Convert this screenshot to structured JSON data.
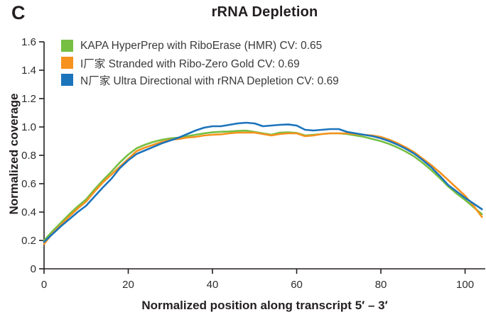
{
  "panel_label": "C",
  "title": "rRNA Depletion",
  "legend": {
    "items": [
      {
        "label": "KAPA HyperPrep with RiboErase (HMR) CV: 0.65"
      },
      {
        "label": "I厂家 Stranded with Ribo-Zero Gold CV: 0.69"
      },
      {
        "label": "N厂家 Ultra Directional with rRNA Depletion CV: 0.69"
      }
    ]
  },
  "chart_data": {
    "type": "line",
    "title": "rRNA Depletion",
    "xlabel": "Normalized position along transcript 5′ – 3′",
    "ylabel": "Normalized coverage",
    "xlim": [
      0,
      104.8
    ],
    "ylim": [
      0,
      1.6
    ],
    "grid": false,
    "legend_position": "top-left",
    "x_ticks": [
      {
        "value": 0,
        "label": "0"
      },
      {
        "value": 20,
        "label": "20"
      },
      {
        "value": 40,
        "label": "40"
      },
      {
        "value": 60,
        "label": "60"
      },
      {
        "value": 80,
        "label": "80"
      },
      {
        "value": 100,
        "label": "100"
      }
    ],
    "y_ticks": [
      {
        "value": 0,
        "label": "0"
      },
      {
        "value": 0.2,
        "label": "0.2"
      },
      {
        "value": 0.4,
        "label": "0.4"
      },
      {
        "value": 0.6,
        "label": "0.6"
      },
      {
        "value": 0.8,
        "label": "0.8"
      },
      {
        "value": 1.0,
        "label": "1.0"
      },
      {
        "value": 1.2,
        "label": "1.2"
      },
      {
        "value": 1.4,
        "label": "1.4"
      },
      {
        "value": 1.6,
        "label": "1.6"
      }
    ],
    "x": [
      0,
      2,
      4,
      6,
      8,
      10,
      12,
      14,
      16,
      18,
      20,
      22,
      24,
      26,
      28,
      30,
      32,
      34,
      36,
      38,
      40,
      42,
      44,
      46,
      48,
      50,
      52,
      54,
      56,
      58,
      60,
      62,
      64,
      66,
      68,
      70,
      72,
      74,
      76,
      78,
      80,
      82,
      84,
      86,
      88,
      90,
      92,
      94,
      96,
      98,
      100,
      102,
      104
    ],
    "series": [
      {
        "name": "KAPA HyperPrep with RiboErase (HMR)",
        "cv": "0.65",
        "color": "#76bf43",
        "values": [
          0.2,
          0.265,
          0.325,
          0.385,
          0.44,
          0.49,
          0.56,
          0.625,
          0.685,
          0.75,
          0.805,
          0.85,
          0.875,
          0.895,
          0.91,
          0.92,
          0.925,
          0.935,
          0.945,
          0.955,
          0.962,
          0.966,
          0.968,
          0.972,
          0.974,
          0.965,
          0.955,
          0.945,
          0.96,
          0.962,
          0.958,
          0.94,
          0.945,
          0.95,
          0.955,
          0.955,
          0.95,
          0.94,
          0.93,
          0.915,
          0.9,
          0.88,
          0.855,
          0.825,
          0.79,
          0.745,
          0.695,
          0.64,
          0.58,
          0.53,
          0.485,
          0.435,
          0.385
        ]
      },
      {
        "name": "I厂家 Stranded with Ribo-Zero Gold",
        "cv": "0.69",
        "color": "#f6921e",
        "values": [
          0.175,
          0.25,
          0.31,
          0.37,
          0.425,
          0.475,
          0.545,
          0.61,
          0.665,
          0.72,
          0.775,
          0.83,
          0.855,
          0.875,
          0.895,
          0.91,
          0.915,
          0.925,
          0.93,
          0.94,
          0.945,
          0.948,
          0.955,
          0.96,
          0.96,
          0.96,
          0.95,
          0.94,
          0.95,
          0.955,
          0.955,
          0.935,
          0.94,
          0.95,
          0.955,
          0.955,
          0.955,
          0.95,
          0.945,
          0.94,
          0.93,
          0.91,
          0.885,
          0.855,
          0.82,
          0.775,
          0.73,
          0.68,
          0.625,
          0.57,
          0.515,
          0.445,
          0.365
        ]
      },
      {
        "name": "N厂家 Ultra Directional with rRNA Depletion",
        "cv": "0.69",
        "color": "#1c74bb",
        "values": [
          0.19,
          0.245,
          0.3,
          0.35,
          0.4,
          0.445,
          0.51,
          0.575,
          0.635,
          0.71,
          0.765,
          0.81,
          0.835,
          0.86,
          0.885,
          0.905,
          0.925,
          0.95,
          0.975,
          0.995,
          1.005,
          1.005,
          1.015,
          1.025,
          1.03,
          1.025,
          1.005,
          1.01,
          1.015,
          1.018,
          1.01,
          0.98,
          0.975,
          0.98,
          0.985,
          0.985,
          0.965,
          0.955,
          0.945,
          0.935,
          0.92,
          0.9,
          0.875,
          0.845,
          0.81,
          0.765,
          0.715,
          0.655,
          0.59,
          0.545,
          0.5,
          0.46,
          0.42
        ]
      }
    ]
  }
}
